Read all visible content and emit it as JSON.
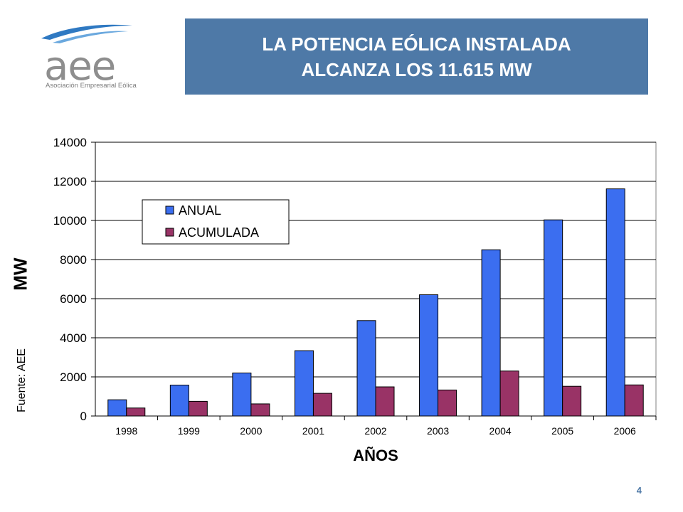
{
  "logo": {
    "text": "aee",
    "subtitle": "Asociación Empresarial Eólica"
  },
  "header": {
    "title_line1": "LA POTENCIA  EÓLICA INSTALADA",
    "title_line2": "ALCANZA LOS 11.615 MW"
  },
  "side": {
    "source": "Fuente: AEE"
  },
  "page_number": "4",
  "colors": {
    "title_bg": "#4e79a7",
    "anual": "#3b6ef0",
    "acumulada": "#993366"
  },
  "chart_data": {
    "type": "bar",
    "title": "",
    "xlabel": "AÑOS",
    "ylabel": "MW",
    "ylim": [
      0,
      14000
    ],
    "yticks": [
      0,
      2000,
      4000,
      6000,
      8000,
      10000,
      12000,
      14000
    ],
    "categories": [
      "1998",
      "1999",
      "2000",
      "2001",
      "2002",
      "2003",
      "2004",
      "2005",
      "2006"
    ],
    "series": [
      {
        "name": "ANUAL",
        "color": "#3b6ef0",
        "values": [
          830,
          1580,
          2200,
          3340,
          4880,
          6200,
          8500,
          10030,
          11615
        ]
      },
      {
        "name": "ACUMULADA",
        "color": "#993366",
        "values": [
          410,
          750,
          620,
          1160,
          1490,
          1330,
          2300,
          1520,
          1590
        ]
      }
    ],
    "legend": "top-left, inside plot",
    "grid": "horizontal"
  }
}
